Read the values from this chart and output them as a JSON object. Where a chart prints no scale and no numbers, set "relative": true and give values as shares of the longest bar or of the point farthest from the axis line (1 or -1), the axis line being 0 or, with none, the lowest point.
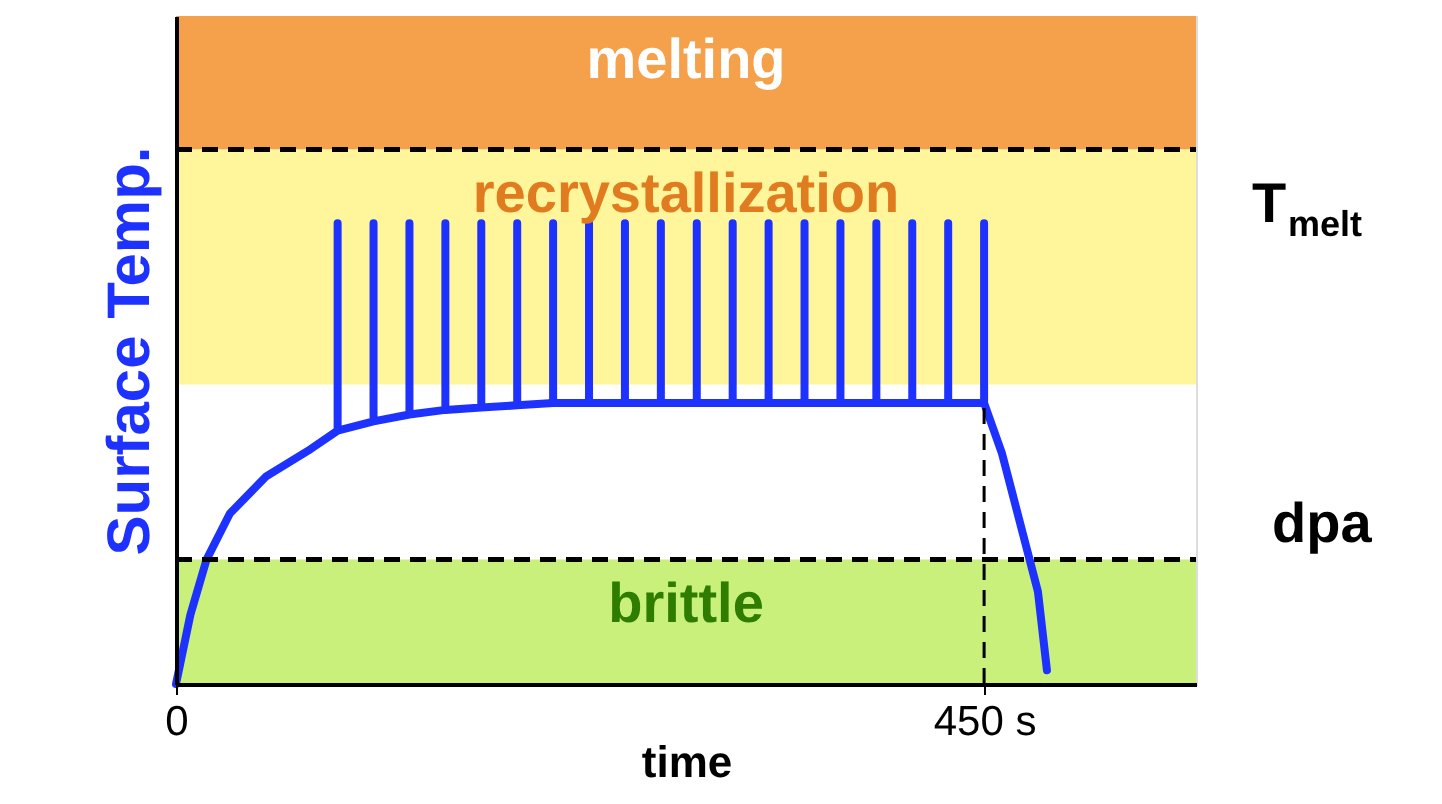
{
  "chart_data": {
    "type": "line",
    "relative": true,
    "xlabel": "time",
    "ylabel": "Surface Temp.",
    "xlim": [
      0,
      568
    ],
    "xticks": [
      0,
      {
        "value": 450,
        "label": "450 s"
      }
    ],
    "grid": false,
    "marker": "none",
    "line_style": "solid",
    "series": [
      {
        "color": "#1e32ff",
        "x": [
          0,
          8,
          17,
          30,
          50,
          75,
          90,
          90,
          90,
          110,
          110,
          110,
          130,
          130,
          130,
          150,
          150,
          150,
          170,
          170,
          170,
          190,
          190,
          190,
          210,
          210,
          210,
          230,
          230,
          230,
          250,
          250,
          250,
          270,
          270,
          270,
          290,
          290,
          290,
          310,
          310,
          310,
          330,
          330,
          330,
          350,
          350,
          350,
          370,
          370,
          370,
          390,
          390,
          390,
          410,
          410,
          410,
          430,
          430,
          430,
          450,
          450,
          450,
          460,
          470,
          480,
          485
        ],
        "values": [
          0,
          0.15,
          0.27,
          0.37,
          0.45,
          0.51,
          0.55,
          1,
          0.55,
          0.57,
          1,
          0.57,
          0.585,
          1,
          0.585,
          0.595,
          1,
          0.595,
          0.6,
          1,
          0.6,
          0.605,
          1,
          0.605,
          0.61,
          1,
          0.61,
          0.61,
          1,
          0.61,
          0.61,
          1,
          0.61,
          0.61,
          1,
          0.61,
          0.61,
          1,
          0.61,
          0.61,
          1,
          0.61,
          0.61,
          1,
          0.61,
          0.61,
          1,
          0.61,
          0.61,
          1,
          0.61,
          0.61,
          1,
          0.61,
          0.61,
          1,
          0.61,
          0.61,
          1,
          0.61,
          0.61,
          1,
          0.61,
          0.5,
          0.35,
          0.2,
          0.03
        ]
      }
    ],
    "bands": [
      {
        "axis": "y",
        "from": 1.16,
        "to": 1.45,
        "label": "melting",
        "color": "#f5a04a"
      },
      {
        "axis": "y",
        "from": 0.65,
        "to": 1.16,
        "label": "recrystallization",
        "color": "#fff59a"
      },
      {
        "axis": "y",
        "from": 0,
        "to": 0.27,
        "label": "brittle",
        "color": "#c8f07a"
      }
    ],
    "ref_lines": [
      {
        "axis": "y",
        "value": 1.16,
        "color": "#000000",
        "line_style": "dashed"
      },
      {
        "axis": "y",
        "value": 0.27,
        "color": "#000000",
        "line_style": "dashed"
      },
      {
        "axis": "x",
        "value": 450,
        "color": "#000000",
        "line_style": "dashed"
      }
    ],
    "annotations": [
      "T$_{melt}$",
      "dpa"
    ]
  }
}
